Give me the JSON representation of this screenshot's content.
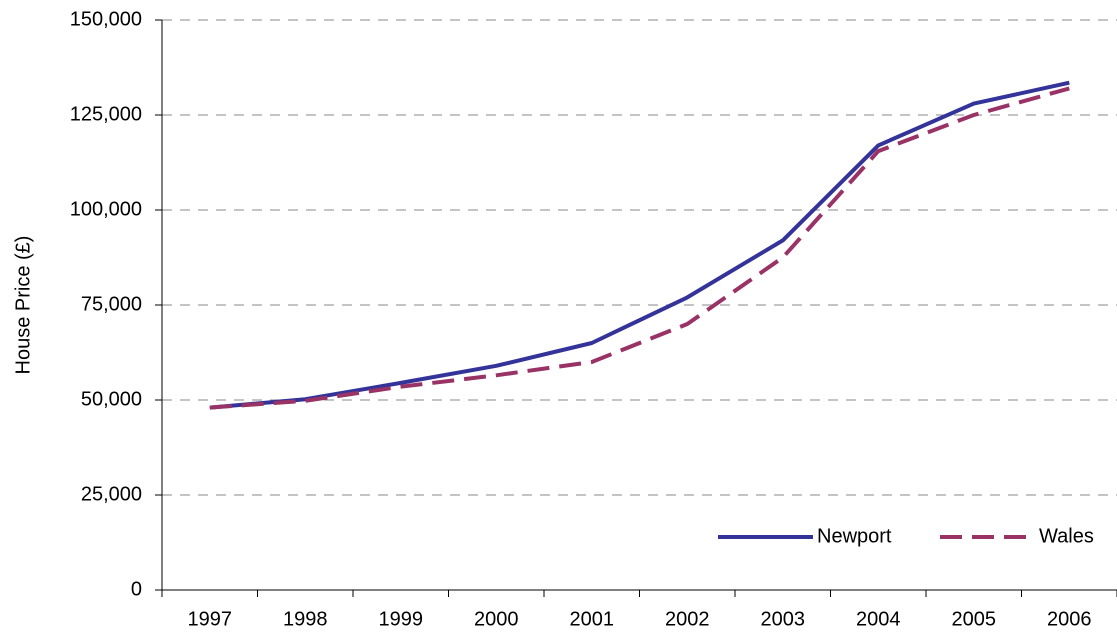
{
  "chart_data": {
    "type": "line",
    "y_label": "House Price (£)",
    "categories": [
      "1997",
      "1998",
      "1999",
      "2000",
      "2001",
      "2002",
      "2003",
      "2004",
      "2005",
      "2006"
    ],
    "series": [
      {
        "name": "Newport",
        "color": "#333399",
        "dash": false,
        "values": [
          48000,
          50200,
          54500,
          59000,
          65000,
          77000,
          92000,
          117000,
          128000,
          133500
        ]
      },
      {
        "name": "Wales",
        "color": "#993366",
        "dash": true,
        "values": [
          48000,
          49800,
          53500,
          56500,
          60000,
          70000,
          87500,
          115500,
          125000,
          132000
        ]
      }
    ],
    "ylim": [
      0,
      150000
    ],
    "yticks": [
      0,
      {
        "value": 25000,
        "label": "25,000"
      },
      {
        "value": 50000,
        "label": "50,000"
      },
      {
        "value": 75000,
        "label": "75,000"
      },
      {
        "value": 100000,
        "label": "100,000"
      },
      {
        "value": 125000,
        "label": "125,000"
      },
      {
        "value": 150000,
        "label": "150,000"
      }
    ],
    "grid": true,
    "legend": "bottom-right"
  }
}
